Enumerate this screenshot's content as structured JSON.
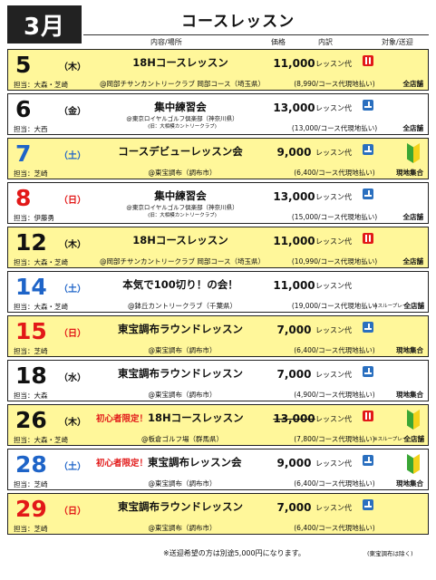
{
  "header": {
    "month": "3月",
    "title": "コースレッスン",
    "col_content": "内容/場所",
    "col_price": "価格",
    "col_breakdown": "内訳",
    "col_target": "対象/送迎"
  },
  "rows": [
    {
      "day": "5",
      "weekday": "（木）",
      "staff": "担当：大森・芝崎",
      "event": "18Hコースレッスン",
      "event_prefix": "",
      "venue": "@岡部チサンカントリークラブ 岡部コース（埼玉県）",
      "venue_line2": "",
      "price": "11,000",
      "price_type": "レッスン代",
      "note": "(8,990/コース代現地払い)",
      "dest": "全店舗",
      "slow": "",
      "icon": "meal",
      "beginner": false,
      "highlight": true,
      "color": "black"
    },
    {
      "day": "6",
      "weekday": "（金）",
      "staff": "担当：大西",
      "event": "集中練習会",
      "event_prefix": "",
      "venue": "@東京ロイヤルゴルフ倶楽部（神奈川県）",
      "venue_line2": "(旧：大相模カントリークラブ)",
      "price": "13,000",
      "price_type": "レッスン代",
      "note": "(13,000/コース代現地払い)",
      "dest": "全店舗",
      "slow": "",
      "icon": "range",
      "beginner": false,
      "highlight": false,
      "color": "black"
    },
    {
      "day": "7",
      "weekday": "（土）",
      "staff": "担当：芝崎",
      "event": "コースデビューレッスン会",
      "event_prefix": "",
      "venue": "@東宝調布（調布市）",
      "venue_line2": "",
      "price": "9,000",
      "price_type": "レッスン代",
      "note": "(6,400/コース代現地払い)",
      "dest": "現地集合",
      "slow": "",
      "icon": "range",
      "beginner": true,
      "highlight": true,
      "color": "blue"
    },
    {
      "day": "8",
      "weekday": "（日）",
      "staff": "担当：伊藤勇",
      "event": "集中練習会",
      "event_prefix": "",
      "venue": "@東京ロイヤルゴルフ倶楽部（神奈川県）",
      "venue_line2": "(旧：大相模カントリークラブ)",
      "price": "13,000",
      "price_type": "レッスン代",
      "note": "(15,000/コース代現地払い)",
      "dest": "全店舗",
      "slow": "",
      "icon": "range",
      "beginner": false,
      "highlight": false,
      "color": "red"
    },
    {
      "day": "12",
      "weekday": "（木）",
      "staff": "担当：大森・芝崎",
      "event": "18Hコースレッスン",
      "event_prefix": "",
      "venue": "@岡部チサンカントリークラブ 岡部コース（埼玉県）",
      "venue_line2": "",
      "price": "11,000",
      "price_type": "レッスン代",
      "note": "(10,990/コース代現地払い)",
      "dest": "全店舗",
      "slow": "",
      "icon": "meal",
      "beginner": false,
      "highlight": true,
      "color": "black"
    },
    {
      "day": "14",
      "weekday": "（土）",
      "staff": "担当：大森・芝崎",
      "event": "本気で100切り！の会！",
      "event_prefix": "",
      "venue": "@鉢丘カントリークラブ（千葉県）",
      "venue_line2": "",
      "price": "11,000",
      "price_type": "レッスン代",
      "note": "(19,000/コース代現地払い)",
      "dest": "全店舗",
      "slow": "※スループレイ",
      "icon": "",
      "beginner": false,
      "highlight": false,
      "color": "blue"
    },
    {
      "day": "15",
      "weekday": "（日）",
      "staff": "担当：芝崎",
      "event": "東宝調布ラウンドレッスン",
      "event_prefix": "",
      "venue": "@東宝調布（調布市）",
      "venue_line2": "",
      "price": "7,000",
      "price_type": "レッスン代",
      "note": "(6,400/コース代現地払い)",
      "dest": "現地集合",
      "slow": "",
      "icon": "range",
      "beginner": false,
      "highlight": true,
      "color": "red"
    },
    {
      "day": "18",
      "weekday": "（水）",
      "staff": "担当：大森",
      "event": "東宝調布ラウンドレッスン",
      "event_prefix": "",
      "venue": "@東宝調布（調布市）",
      "venue_line2": "",
      "price": "7,000",
      "price_type": "レッスン代",
      "note": "(4,900/コース代現地払い)",
      "dest": "現地集合",
      "slow": "",
      "icon": "range",
      "beginner": false,
      "highlight": false,
      "color": "black"
    },
    {
      "day": "26",
      "weekday": "（木）",
      "staff": "担当：大森・芝崎",
      "event": "18Hコースレッスン",
      "event_prefix": "初心者限定！",
      "venue": "@板倉ゴルフ場（群馬県）",
      "venue_line2": "",
      "price": "13,000",
      "price_type": "レッスン代",
      "note": "(7,800/コース代現地払い)",
      "dest": "全店舗",
      "slow": "※スループレイ",
      "icon": "meal",
      "beginner": true,
      "highlight": true,
      "color": "black",
      "strike": true
    },
    {
      "day": "28",
      "weekday": "（土）",
      "staff": "担当：芝崎",
      "event": "東宝調布レッスン会",
      "event_prefix": "初心者限定！",
      "venue": "@東宝調布（調布市）",
      "venue_line2": "",
      "price": "9,000",
      "price_type": "レッスン代",
      "note": "(6,400/コース代現地払い)",
      "dest": "現地集合",
      "slow": "",
      "icon": "range",
      "beginner": true,
      "highlight": false,
      "color": "blue"
    },
    {
      "day": "29",
      "weekday": "（日）",
      "staff": "担当：芝崎",
      "event": "東宝調布ラウンドレッスン",
      "event_prefix": "",
      "venue": "@東宝調布（調布市）",
      "venue_line2": "",
      "price": "7,000",
      "price_type": "レッスン代",
      "note": "(6,400/コース代現地払い)",
      "dest": "",
      "slow": "",
      "icon": "range",
      "beginner": false,
      "highlight": true,
      "color": "red"
    }
  ],
  "footer": {
    "note": "※送迎希望の方は別途5,000円になります。",
    "note2": "(東宝調布は除く)"
  }
}
